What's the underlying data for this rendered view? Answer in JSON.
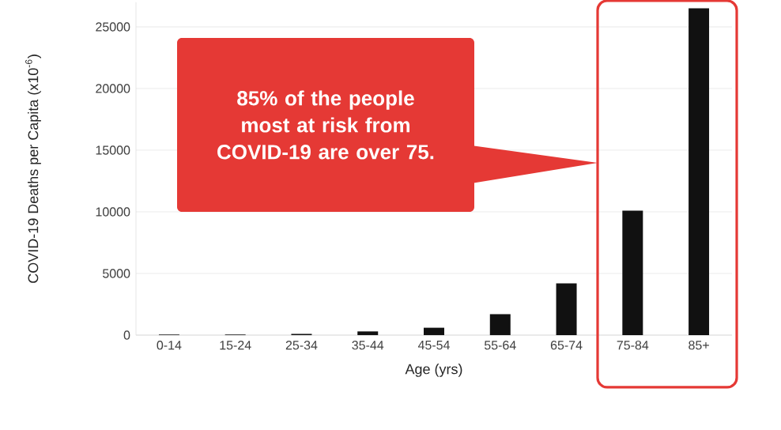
{
  "chart_data": {
    "type": "bar",
    "xlabel": "Age (yrs)",
    "ylabel": "COVID-19 Deaths per Capita (x10$^{-6}$)",
    "categories": [
      "0-14",
      "15-24",
      "25-34",
      "35-44",
      "45-54",
      "55-64",
      "65-74",
      "75-84",
      "85+"
    ],
    "values": [
      50,
      50,
      100,
      300,
      600,
      1700,
      4200,
      10100,
      26500
    ],
    "color": "#111111",
    "ylim": [
      0,
      27000
    ],
    "yticks": [
      0,
      5000,
      10000,
      15000,
      20000,
      25000
    ],
    "grid": "y",
    "annotations": [
      "85% of the people most at risk from COVID-19 are over 75."
    ]
  }
}
